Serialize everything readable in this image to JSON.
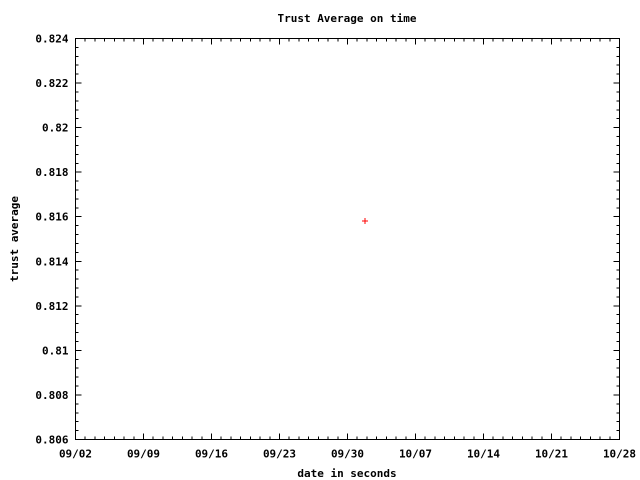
{
  "chart_data": {
    "type": "scatter",
    "title": "Trust Average on time",
    "xlabel": "date in seconds",
    "ylabel": "trust average",
    "x_tick_labels": [
      "09/02",
      "09/09",
      "09/16",
      "09/23",
      "09/30",
      "10/07",
      "10/14",
      "10/21",
      "10/28"
    ],
    "y_tick_labels": [
      "0.806",
      "0.808",
      "0.81",
      "0.812",
      "0.814",
      "0.816",
      "0.818",
      "0.82",
      "0.822",
      "0.824"
    ],
    "ylim": [
      0.806,
      0.824
    ],
    "xlim_days": [
      0,
      56
    ],
    "x_minor_ticks_per_major": 7,
    "y_minor_ticks_per_major": 5,
    "grid": false,
    "legend": "none",
    "series": [
      {
        "color": "#ff0000",
        "marker": "plus",
        "points": [
          {
            "x_day_offset": 29.8,
            "y": 0.8158
          }
        ]
      }
    ]
  }
}
